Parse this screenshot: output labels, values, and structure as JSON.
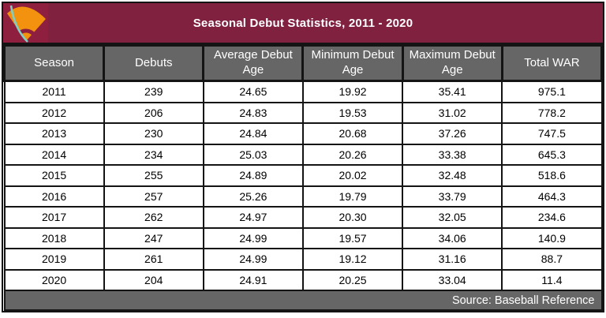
{
  "header": {
    "title": "Seasonal Debut Statistics, 2011 - 2020"
  },
  "logo": {
    "name": "baseball-field-fan-logo",
    "background": "#8E1F3E",
    "fan_color": "#F2920E",
    "arc_color": "#7FCFC5"
  },
  "colors": {
    "title_bar": "#802140",
    "header_row": "#666666",
    "footer_row": "#666666",
    "border": "#141414",
    "row_background": "#FFFFFF",
    "header_text": "#FFFFFF",
    "body_text": "#000000"
  },
  "table": {
    "columns": [
      "Season",
      "Debuts",
      "Average Debut Age",
      "Minimum Debut Age",
      "Maximum Debut Age",
      "Total WAR"
    ],
    "rows": [
      [
        "2011",
        "239",
        "24.65",
        "19.92",
        "35.41",
        "975.1"
      ],
      [
        "2012",
        "206",
        "24.83",
        "19.53",
        "31.02",
        "778.2"
      ],
      [
        "2013",
        "230",
        "24.84",
        "20.68",
        "37.26",
        "747.5"
      ],
      [
        "2014",
        "234",
        "25.03",
        "20.26",
        "33.38",
        "645.3"
      ],
      [
        "2015",
        "255",
        "24.89",
        "20.02",
        "32.48",
        "518.6"
      ],
      [
        "2016",
        "257",
        "25.26",
        "19.79",
        "33.79",
        "464.3"
      ],
      [
        "2017",
        "262",
        "24.97",
        "20.30",
        "32.05",
        "234.6"
      ],
      [
        "2018",
        "247",
        "24.99",
        "19.57",
        "34.06",
        "140.9"
      ],
      [
        "2019",
        "261",
        "24.99",
        "19.12",
        "31.16",
        "88.7"
      ],
      [
        "2020",
        "204",
        "24.91",
        "20.25",
        "33.04",
        "11.4"
      ]
    ]
  },
  "footer": {
    "source": "Source: Baseball Reference"
  },
  "chart_data": {
    "type": "table",
    "title": "Seasonal Debut Statistics, 2011 - 2020",
    "columns": [
      "Season",
      "Debuts",
      "Average Debut Age",
      "Minimum Debut Age",
      "Maximum Debut Age",
      "Total WAR"
    ],
    "seasons": [
      2011,
      2012,
      2013,
      2014,
      2015,
      2016,
      2017,
      2018,
      2019,
      2020
    ],
    "series": [
      {
        "name": "Debuts",
        "values": [
          239,
          206,
          230,
          234,
          255,
          257,
          262,
          247,
          261,
          204
        ]
      },
      {
        "name": "Average Debut Age",
        "values": [
          24.65,
          24.83,
          24.84,
          25.03,
          24.89,
          25.26,
          24.97,
          24.99,
          24.99,
          24.91
        ]
      },
      {
        "name": "Minimum Debut Age",
        "values": [
          19.92,
          19.53,
          20.68,
          20.26,
          20.02,
          19.79,
          20.3,
          19.57,
          19.12,
          20.25
        ]
      },
      {
        "name": "Maximum Debut Age",
        "values": [
          35.41,
          31.02,
          37.26,
          33.38,
          32.48,
          33.79,
          32.05,
          34.06,
          31.16,
          33.04
        ]
      },
      {
        "name": "Total WAR",
        "values": [
          975.1,
          778.2,
          747.5,
          645.3,
          518.6,
          464.3,
          234.6,
          140.9,
          88.7,
          11.4
        ]
      }
    ],
    "annotations": [
      "Source: Baseball Reference"
    ]
  }
}
